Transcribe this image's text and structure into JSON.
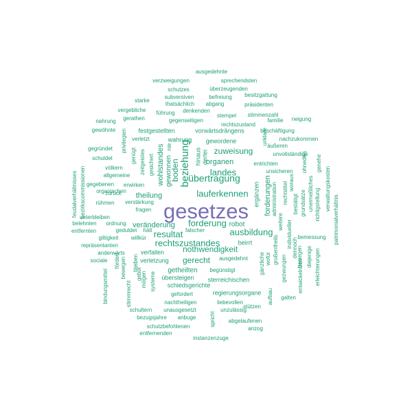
{
  "word_cloud": {
    "colors": {
      "primary": "#7570b3",
      "secondary": "#1b9e77"
    },
    "words": [
      {
        "text": "gesetzes",
        "color": "primary"
      },
      {
        "text": "beziehung",
        "color": "secondary"
      },
      {
        "text": "übertragung",
        "color": "secondary"
      },
      {
        "text": "forderung",
        "color": "secondary"
      },
      {
        "text": "resultat",
        "color": "secondary"
      },
      {
        "text": "rechtszustandes",
        "color": "secondary"
      },
      {
        "text": "ausbildung",
        "color": "secondary"
      },
      {
        "text": "lauferkennen",
        "color": "secondary"
      },
      {
        "text": "landes",
        "color": "secondary"
      },
      {
        "text": "zuweisung",
        "color": "secondary"
      },
      {
        "text": "nothwendigkeit",
        "color": "secondary"
      },
      {
        "text": "gerecht",
        "color": "secondary"
      },
      {
        "text": "boden",
        "color": "secondary"
      },
      {
        "text": "wohlstandes",
        "color": "secondary"
      },
      {
        "text": "gewonnen",
        "color": "secondary"
      },
      {
        "text": "organen",
        "color": "secondary"
      },
      {
        "text": "theilung",
        "color": "secondary"
      },
      {
        "text": "forderungen",
        "color": "secondary"
      },
      {
        "text": "robot",
        "color": "secondary"
      },
      {
        "text": "veränderung",
        "color": "secondary"
      },
      {
        "text": "getheilten",
        "color": "secondary"
      },
      {
        "text": "ergänzen",
        "color": "secondary"
      },
      {
        "text": "ausgedehnte",
        "color": "secondary"
      },
      {
        "text": "sprechendsten",
        "color": "secondary"
      },
      {
        "text": "verzweigungen",
        "color": "secondary"
      },
      {
        "text": "überzeugenden",
        "color": "secondary"
      },
      {
        "text": "schutzes",
        "color": "secondary"
      },
      {
        "text": "subversiven",
        "color": "secondary"
      },
      {
        "text": "befreiung",
        "color": "secondary"
      },
      {
        "text": "besitzgattung",
        "color": "secondary"
      },
      {
        "text": "starke",
        "color": "secondary"
      },
      {
        "text": "thatsächlich",
        "color": "secondary"
      },
      {
        "text": "abgang",
        "color": "secondary"
      },
      {
        "text": "präsidenten",
        "color": "secondary"
      },
      {
        "text": "vergebliche",
        "color": "secondary"
      },
      {
        "text": "führung",
        "color": "secondary"
      },
      {
        "text": "denkenden",
        "color": "secondary"
      },
      {
        "text": "gerathen",
        "color": "secondary"
      },
      {
        "text": "stempel",
        "color": "secondary"
      },
      {
        "text": "stimmenzahl",
        "color": "secondary"
      },
      {
        "text": "nahrung",
        "color": "secondary"
      },
      {
        "text": "gegenseitigen",
        "color": "secondary"
      },
      {
        "text": "neigung",
        "color": "secondary"
      },
      {
        "text": "rechtszustand",
        "color": "secondary"
      },
      {
        "text": "familie",
        "color": "secondary"
      },
      {
        "text": "gewöhnte",
        "color": "secondary"
      },
      {
        "text": "festgestellten",
        "color": "secondary"
      },
      {
        "text": "vorwärtsdrängens",
        "color": "secondary"
      },
      {
        "text": "beschäftigung",
        "color": "secondary"
      },
      {
        "text": "nachzukommen",
        "color": "secondary"
      },
      {
        "text": "verletzt",
        "color": "secondary"
      },
      {
        "text": "wahrung",
        "color": "secondary"
      },
      {
        "text": "gewordene",
        "color": "secondary"
      },
      {
        "text": "äußeren",
        "color": "secondary"
      },
      {
        "text": "gegründet",
        "color": "secondary"
      },
      {
        "text": "unvollständige",
        "color": "secondary"
      },
      {
        "text": "schuldet",
        "color": "secondary"
      },
      {
        "text": "entrichten",
        "color": "secondary"
      },
      {
        "text": "völkern",
        "color": "secondary"
      },
      {
        "text": "unsicheren",
        "color": "secondary"
      },
      {
        "text": "allgemeine",
        "color": "secondary"
      },
      {
        "text": "gegebenen",
        "color": "secondary"
      },
      {
        "text": "erwirken",
        "color": "secondary"
      },
      {
        "text": "zurück",
        "color": "secondary"
      },
      {
        "text": "organischen",
        "color": "secondary"
      },
      {
        "text": "rühmen",
        "color": "secondary"
      },
      {
        "text": "verstärkung",
        "color": "secondary"
      },
      {
        "text": "fragen",
        "color": "secondary"
      },
      {
        "text": "unterbleiben",
        "color": "secondary"
      },
      {
        "text": "belehnten",
        "color": "secondary"
      },
      {
        "text": "ordnung",
        "color": "secondary"
      },
      {
        "text": "entfernten",
        "color": "secondary"
      },
      {
        "text": "geduldet",
        "color": "secondary"
      },
      {
        "text": "hält",
        "color": "secondary"
      },
      {
        "text": "falscher",
        "color": "secondary"
      },
      {
        "text": "giltigkeit",
        "color": "secondary"
      },
      {
        "text": "willkür",
        "color": "secondary"
      },
      {
        "text": "bemessung",
        "color": "secondary"
      },
      {
        "text": "repräsentanten",
        "color": "secondary"
      },
      {
        "text": "beirrt",
        "color": "secondary"
      },
      {
        "text": "anderwärts",
        "color": "secondary"
      },
      {
        "text": "verfallen",
        "color": "secondary"
      },
      {
        "text": "ausgedehnt",
        "color": "secondary"
      },
      {
        "text": "sociale",
        "color": "secondary"
      },
      {
        "text": "verletzung",
        "color": "secondary"
      },
      {
        "text": "begünstigt",
        "color": "secondary"
      },
      {
        "text": "übersteigen",
        "color": "secondary"
      },
      {
        "text": "sterreichischen",
        "color": "secondary"
      },
      {
        "text": "schiedsgerichte",
        "color": "secondary"
      },
      {
        "text": "regierungsorgane",
        "color": "secondary"
      },
      {
        "text": "gefordert",
        "color": "secondary"
      },
      {
        "text": "nachtheiligen",
        "color": "secondary"
      },
      {
        "text": "liebevollen",
        "color": "secondary"
      },
      {
        "text": "stützen",
        "color": "secondary"
      },
      {
        "text": "schultern",
        "color": "secondary"
      },
      {
        "text": "unausgesetzt",
        "color": "secondary"
      },
      {
        "text": "unzulässig",
        "color": "secondary"
      },
      {
        "text": "galten",
        "color": "secondary"
      },
      {
        "text": "bezugsjahre",
        "color": "secondary"
      },
      {
        "text": "anbuge",
        "color": "secondary"
      },
      {
        "text": "abgelaufenen",
        "color": "secondary"
      },
      {
        "text": "schutzbefohlenen",
        "color": "secondary"
      },
      {
        "text": "anzog",
        "color": "secondary"
      },
      {
        "text": "entfernenden",
        "color": "secondary"
      },
      {
        "text": "instanzenzuge",
        "color": "secondary"
      },
      {
        "text": "feudalverhältnisses",
        "color": "secondary"
      },
      {
        "text": "bezirkscommissionen",
        "color": "secondary"
      },
      {
        "text": "privilegien",
        "color": "secondary"
      },
      {
        "text": "genügt",
        "color": "secondary"
      },
      {
        "text": "zeitgeistes",
        "color": "secondary"
      },
      {
        "text": "gesichert",
        "color": "secondary"
      },
      {
        "text": "hinaus",
        "color": "secondary"
      },
      {
        "text": "derlei",
        "color": "secondary"
      },
      {
        "text": "nie",
        "color": "secondary"
      },
      {
        "text": "unklare",
        "color": "secondary"
      },
      {
        "text": "rechtstitel",
        "color": "secondary"
      },
      {
        "text": "bestätigt",
        "color": "secondary"
      },
      {
        "text": "administration",
        "color": "secondary"
      },
      {
        "text": "weitere",
        "color": "secondary"
      },
      {
        "text": "woraus",
        "color": "secondary"
      },
      {
        "text": "ohnedies",
        "color": "secondary"
      },
      {
        "text": "grundsätze",
        "color": "secondary"
      },
      {
        "text": "unermeßliches",
        "color": "secondary"
      },
      {
        "text": "genehe",
        "color": "secondary"
      },
      {
        "text": "verwaltungskosten",
        "color": "secondary"
      },
      {
        "text": "richtigstellung",
        "color": "secondary"
      },
      {
        "text": "patrimonialverhältnis",
        "color": "secondary"
      },
      {
        "text": "individueller",
        "color": "secondary"
      },
      {
        "text": "dennoch",
        "color": "secondary"
      },
      {
        "text": "besiegen",
        "color": "secondary"
      },
      {
        "text": "diejenige",
        "color": "secondary"
      },
      {
        "text": "erleichterungen",
        "color": "secondary"
      },
      {
        "text": "großentheils",
        "color": "secondary"
      },
      {
        "text": "gezwungen",
        "color": "secondary"
      },
      {
        "text": "entwickelnden",
        "color": "secondary"
      },
      {
        "text": "gänzliche",
        "color": "secondary"
      },
      {
        "text": "wofür",
        "color": "secondary"
      },
      {
        "text": "aufbau",
        "color": "secondary"
      },
      {
        "text": "fördert",
        "color": "secondary"
      },
      {
        "text": "bewegen",
        "color": "secondary"
      },
      {
        "text": "stimmrecht",
        "color": "secondary"
      },
      {
        "text": "bindungsmittel",
        "color": "secondary"
      },
      {
        "text": "gebot",
        "color": "secondary"
      },
      {
        "text": "bleiben",
        "color": "secondary"
      },
      {
        "text": "mögen",
        "color": "secondary"
      },
      {
        "text": "systeme",
        "color": "secondary"
      },
      {
        "text": "spricht",
        "color": "secondary"
      }
    ]
  }
}
